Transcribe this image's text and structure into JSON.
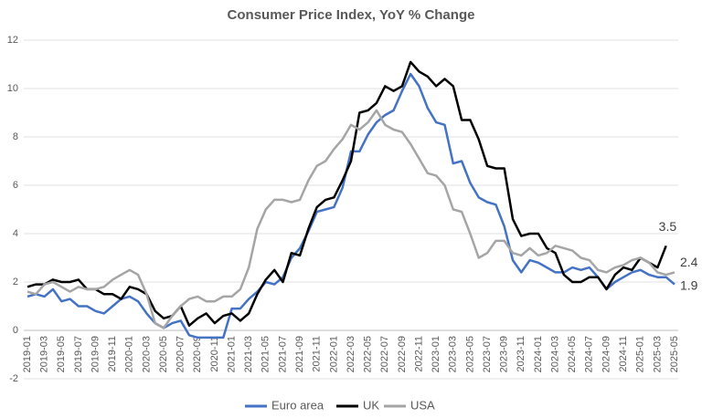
{
  "chart_data": {
    "type": "line",
    "title": "Consumer Price Index, YoY % Change",
    "categories": [
      "2019-01",
      null,
      "2019-03",
      null,
      "2019-05",
      null,
      "2019-07",
      null,
      "2019-09",
      null,
      "2019-11",
      null,
      "2020-01",
      null,
      "2020-03",
      null,
      "2020-05",
      null,
      "2020-07",
      null,
      "2020-09",
      null,
      "2020-11",
      null,
      "2021-01",
      null,
      "2021-03",
      null,
      "2021-05",
      null,
      "2021-07",
      null,
      "2021-09",
      null,
      "2021-11",
      null,
      "2022-01",
      null,
      "2022-03",
      null,
      "2022-05",
      null,
      "2022-07",
      null,
      "2022-09",
      null,
      "2022-11",
      null,
      "2023-01",
      null,
      "2023-03",
      null,
      "2023-05",
      null,
      "2023-07",
      null,
      "2023-09",
      null,
      "2023-11",
      null,
      "2024-01",
      null,
      "2024-03",
      null,
      "2024-05",
      null,
      "2024-07",
      null,
      "2024-09",
      null,
      "2024-11",
      null,
      "2025-01",
      null,
      "2025-03",
      null,
      "2025-05"
    ],
    "series": [
      {
        "name": "Euro area",
        "color": "#4472c4",
        "values": [
          1.4,
          1.5,
          1.4,
          1.7,
          1.2,
          1.3,
          1.0,
          1.0,
          0.8,
          0.7,
          1.0,
          1.3,
          1.4,
          1.2,
          0.7,
          0.3,
          0.1,
          0.3,
          0.4,
          -0.2,
          -0.3,
          -0.3,
          -0.3,
          -0.3,
          0.9,
          0.9,
          1.3,
          1.6,
          2.0,
          1.9,
          2.2,
          3.0,
          3.4,
          4.1,
          4.9,
          5.0,
          5.1,
          5.9,
          7.4,
          7.4,
          8.1,
          8.6,
          8.9,
          9.1,
          9.9,
          10.6,
          10.1,
          9.2,
          8.6,
          8.5,
          6.9,
          7.0,
          6.1,
          5.5,
          5.3,
          5.2,
          4.3,
          2.9,
          2.4,
          2.9,
          2.8,
          2.6,
          2.4,
          2.4,
          2.6,
          2.5,
          2.6,
          2.2,
          1.7,
          2.0,
          2.2,
          2.4,
          2.5,
          2.3,
          2.2,
          2.2,
          1.9
        ]
      },
      {
        "name": "UK",
        "color": "#000000",
        "values": [
          1.8,
          1.9,
          1.9,
          2.1,
          2.0,
          2.0,
          2.1,
          1.7,
          1.7,
          1.5,
          1.5,
          1.3,
          1.8,
          1.7,
          1.5,
          0.8,
          0.5,
          0.6,
          1.0,
          0.2,
          0.5,
          0.7,
          0.3,
          0.6,
          0.7,
          0.4,
          0.7,
          1.5,
          2.1,
          2.5,
          2.0,
          3.2,
          3.1,
          4.2,
          5.1,
          5.4,
          5.5,
          6.2,
          7.0,
          9.0,
          9.1,
          9.4,
          10.1,
          9.9,
          10.1,
          11.1,
          10.7,
          10.5,
          10.1,
          10.4,
          10.1,
          8.7,
          8.7,
          7.9,
          6.8,
          6.7,
          6.7,
          4.6,
          3.9,
          4.0,
          4.0,
          3.4,
          3.2,
          2.3,
          2.0,
          2.0,
          2.2,
          2.2,
          1.7,
          2.3,
          2.6,
          2.5,
          3.0,
          2.8,
          2.6,
          3.5,
          null
        ]
      },
      {
        "name": "USA",
        "color": "#a5a5a5",
        "values": [
          1.6,
          1.5,
          1.9,
          2.0,
          1.8,
          1.6,
          1.8,
          1.7,
          1.7,
          1.8,
          2.1,
          2.3,
          2.5,
          2.3,
          1.5,
          0.3,
          0.1,
          0.6,
          1.0,
          1.3,
          1.4,
          1.2,
          1.2,
          1.4,
          1.4,
          1.7,
          2.6,
          4.2,
          5.0,
          5.4,
          5.4,
          5.3,
          5.4,
          6.2,
          6.8,
          7.0,
          7.5,
          7.9,
          8.5,
          8.3,
          8.6,
          9.1,
          8.5,
          8.3,
          8.2,
          7.7,
          7.1,
          6.5,
          6.4,
          6.0,
          5.0,
          4.9,
          4.0,
          3.0,
          3.2,
          3.7,
          3.7,
          3.2,
          3.1,
          3.4,
          3.1,
          3.2,
          3.5,
          3.4,
          3.3,
          3.0,
          2.9,
          2.5,
          2.4,
          2.6,
          2.7,
          2.9,
          3.0,
          2.8,
          2.4,
          2.3,
          2.4
        ]
      }
    ],
    "ylim": [
      -2,
      12
    ],
    "yticks": [
      -2,
      0,
      2,
      4,
      6,
      8,
      10,
      12
    ],
    "grid": true,
    "legend": "bottom"
  }
}
